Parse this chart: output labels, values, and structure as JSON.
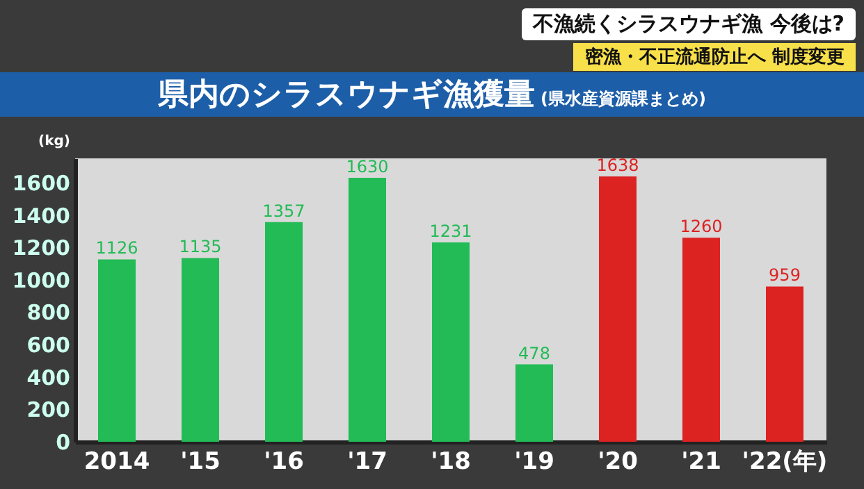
{
  "chart_data": {
    "type": "bar",
    "title": "県内のシラスウナギ漁獲量",
    "subtitle": "(県水産資源課まとめ)",
    "annotations": [
      "不漁続くシラスウナギ漁 今後は?",
      "密漁・不正流通防止へ 制度変更"
    ],
    "ylabel": "(kg)",
    "categories": [
      "2014",
      "'15",
      "'16",
      "'17",
      "'18",
      "'19",
      "'20",
      "'21",
      "'22(年)"
    ],
    "values": [
      1126,
      1135,
      1357,
      1630,
      1231,
      478,
      1638,
      1260,
      959
    ],
    "colors": [
      "#22bb55",
      "#22bb55",
      "#22bb55",
      "#22bb55",
      "#22bb55",
      "#22bb55",
      "#dd2222",
      "#dd2222",
      "#dd2222"
    ],
    "ylim": [
      0,
      1750
    ],
    "yticks": [
      0,
      200,
      400,
      600,
      800,
      1000,
      1200,
      1400,
      1600
    ],
    "data_labels": true,
    "grid": false
  }
}
